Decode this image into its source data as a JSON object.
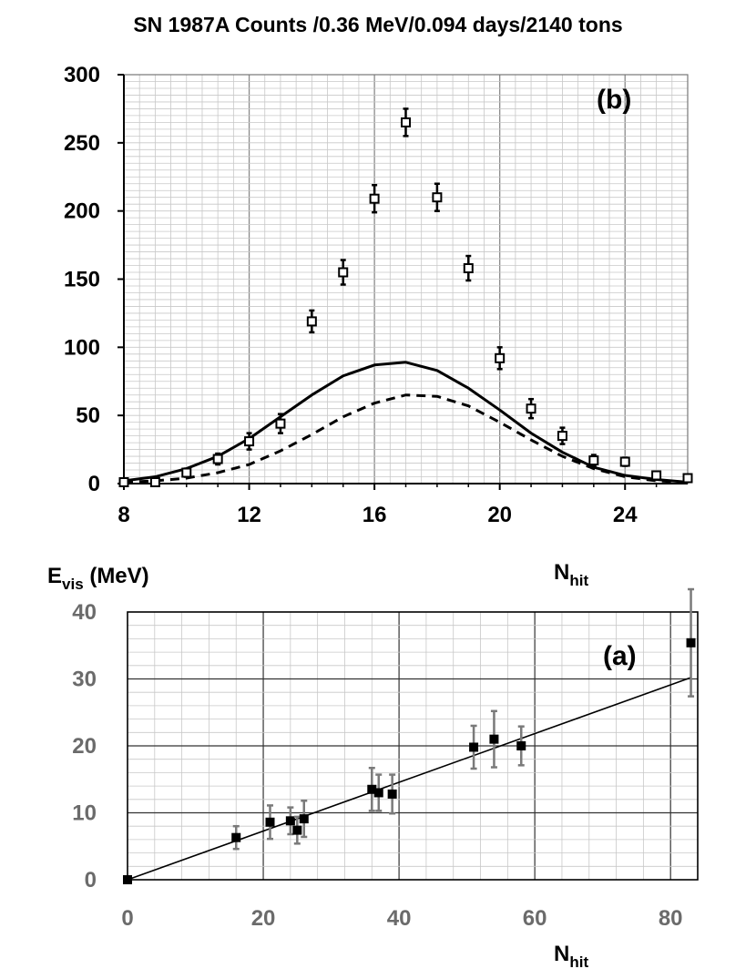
{
  "title": "SN 1987A Counts /0.36 MeV/0.094 days/2140 tons",
  "chart_data": [
    {
      "panel": "(b)",
      "type": "scatter",
      "title": "SN 1987A Counts /0.36 MeV/0.094 days/2140 tons",
      "xlabel": {
        "main": "N",
        "sub": "hit"
      },
      "ylabel": "",
      "xlim": [
        8,
        26
      ],
      "ylim": [
        0,
        300
      ],
      "x_ticks": [
        8,
        12,
        16,
        20,
        24
      ],
      "y_ticks": [
        0,
        50,
        100,
        150,
        200,
        250,
        300
      ],
      "grid": true,
      "series": [
        {
          "style": "open-square-with-error",
          "x": [
            8,
            9,
            10,
            11,
            12,
            13,
            14,
            15,
            16,
            17,
            18,
            19,
            20,
            21,
            22,
            23,
            24,
            25,
            26
          ],
          "y": [
            1,
            1,
            8,
            18,
            31,
            44,
            119,
            155,
            209,
            265,
            210,
            158,
            92,
            55,
            35,
            17,
            16,
            6,
            4
          ],
          "err": [
            1,
            1,
            3,
            4,
            6,
            7,
            8,
            9,
            10,
            10,
            10,
            9,
            8,
            7,
            6,
            4,
            3,
            2,
            1
          ]
        },
        {
          "style": "solid-line",
          "x": [
            8,
            9,
            10,
            11,
            12,
            13,
            14,
            15,
            16,
            17,
            18,
            19,
            20,
            21,
            22,
            23,
            24,
            25,
            26
          ],
          "y": [
            2,
            5,
            11,
            20,
            33,
            49,
            65,
            79,
            87,
            89,
            83,
            70,
            54,
            37,
            23,
            12,
            6,
            3,
            1
          ]
        },
        {
          "style": "dashed-line",
          "x": [
            8,
            9,
            10,
            11,
            12,
            13,
            14,
            15,
            16,
            17,
            18,
            19,
            20,
            21,
            22,
            23,
            24,
            25,
            26
          ],
          "y": [
            1,
            2,
            4,
            8,
            14,
            24,
            36,
            49,
            59,
            65,
            64,
            57,
            45,
            32,
            20,
            11,
            5,
            2,
            1
          ]
        }
      ]
    },
    {
      "panel": "(a)",
      "type": "scatter",
      "title": "",
      "ylabel": {
        "main": "E",
        "sub": "vis",
        "unit": " (MeV)"
      },
      "xlabel": {
        "main": "N",
        "sub": "hit"
      },
      "xlim": [
        0,
        84
      ],
      "ylim": [
        0,
        40
      ],
      "x_ticks": [
        0,
        20,
        40,
        60,
        80
      ],
      "y_ticks": [
        0,
        10,
        20,
        30,
        40
      ],
      "grid": true,
      "series": [
        {
          "style": "filled-square-with-error",
          "x": [
            0,
            16,
            21,
            24,
            25,
            26,
            36,
            37,
            39,
            51,
            54,
            58,
            83
          ],
          "y": [
            0,
            6.3,
            8.6,
            8.8,
            7.4,
            9.1,
            13.5,
            13,
            12.8,
            19.8,
            21,
            20,
            35.4
          ],
          "err": [
            0,
            1.7,
            2.5,
            2,
            2,
            2.7,
            3.2,
            2.7,
            2.9,
            3.2,
            4.2,
            2.9,
            8
          ]
        },
        {
          "style": "fit-line",
          "x": [
            0,
            83
          ],
          "y": [
            0,
            30.2
          ]
        }
      ]
    }
  ]
}
